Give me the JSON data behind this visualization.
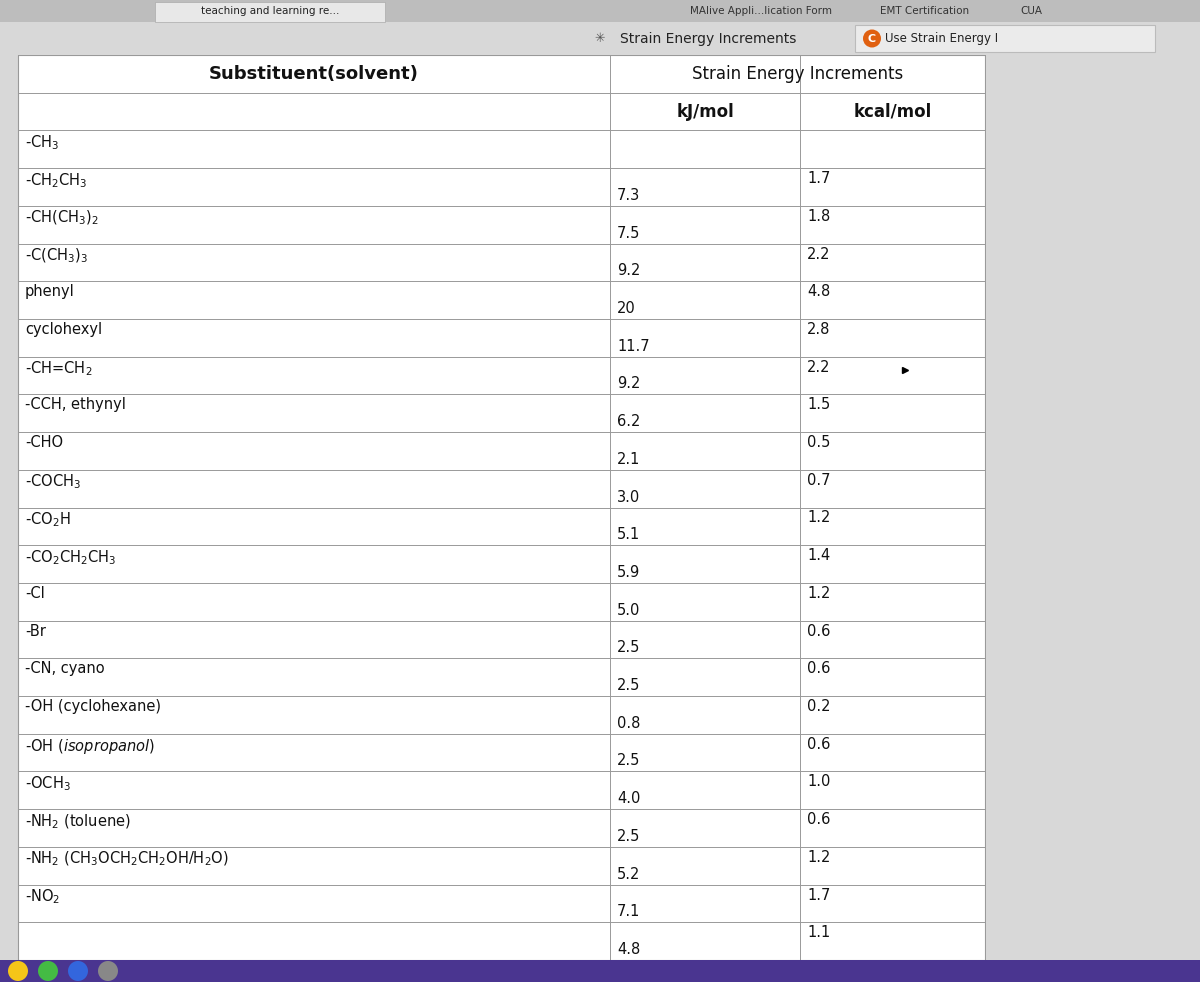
{
  "title": "Strain Energy Increments",
  "col1_header": "Substituent(solvent)",
  "col2_header": "kJ/mol",
  "col3_header": "kcal/mol",
  "rows": [
    {
      "substituent": "-CH$_3$",
      "kj": "",
      "kcal": ""
    },
    {
      "substituent": "-CH$_2$CH$_3$",
      "kj": "7.3",
      "kcal": "1.7"
    },
    {
      "substituent": "-CH(CH$_3$)$_2$",
      "kj": "7.5",
      "kcal": "1.8"
    },
    {
      "substituent": "-C(CH$_3$)$_3$",
      "kj": "9.2",
      "kcal": "2.2"
    },
    {
      "substituent": "phenyl",
      "kj": "20",
      "kcal": "4.8"
    },
    {
      "substituent": "cyclohexyl",
      "kj": "11.7",
      "kcal": "2.8"
    },
    {
      "substituent": "-CH=CH$_2$",
      "kj": "9.2",
      "kcal": "2.2"
    },
    {
      "substituent": "-CCH, ethynyl",
      "kj": "6.2",
      "kcal": "1.5"
    },
    {
      "substituent": "-CHO",
      "kj": "2.1",
      "kcal": "0.5"
    },
    {
      "substituent": "-COCH$_3$",
      "kj": "3.0",
      "kcal": "0.7"
    },
    {
      "substituent": "-CO$_2$H",
      "kj": "5.1",
      "kcal": "1.2"
    },
    {
      "substituent": "-CO$_2$CH$_2$CH$_3$",
      "kj": "5.9",
      "kcal": "1.4"
    },
    {
      "substituent": "-Cl",
      "kj": "5.0",
      "kcal": "1.2"
    },
    {
      "substituent": "-Br",
      "kj": "2.5",
      "kcal": "0.6"
    },
    {
      "substituent": "-CN, cyano",
      "kj": "2.5",
      "kcal": "0.6"
    },
    {
      "substituent": "-OH (cyclohexane)",
      "kj": "0.8",
      "kcal": "0.2"
    },
    {
      "substituent": "-OH (isopropanol)",
      "kj": "2.5",
      "kcal": "0.6"
    },
    {
      "substituent": "-OCH$_3$",
      "kj": "4.0",
      "kcal": "1.0"
    },
    {
      "substituent": "-NH$_2$ (toluene)",
      "kj": "2.5",
      "kcal": "0.6"
    },
    {
      "substituent": "-NH$_2$ (CH$_3$OCH$_2$CH$_2$OH/H$_2$O)",
      "kj": "5.2",
      "kcal": "1.2"
    },
    {
      "substituent": "-NO$_2$",
      "kj": "7.1",
      "kcal": "1.7"
    },
    {
      "substituent": "",
      "kj": "4.8",
      "kcal": "1.1"
    }
  ],
  "bg_color": "#d8d8d8",
  "table_bg": "#ffffff",
  "line_color": "#999999",
  "text_color": "#111111",
  "top_bar_bg": "#c0c0c0",
  "second_bar_bg": "#e0e0e0",
  "bottom_bar_bg": "#5a3ea0"
}
